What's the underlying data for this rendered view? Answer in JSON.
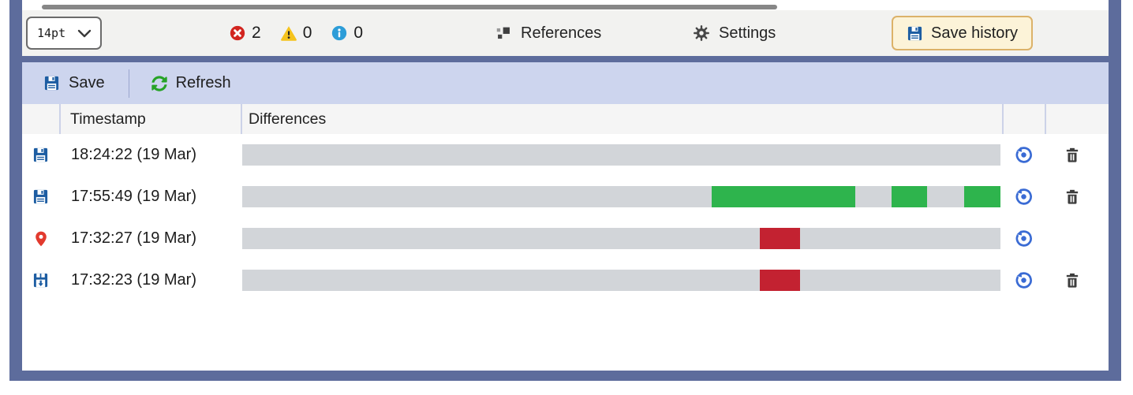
{
  "colors": {
    "frame": "#5d6c9c",
    "toolbar_bg": "#f2f2f0",
    "panel_toolbar_bg": "#cdd5ee",
    "header_bg": "#f5f5f5",
    "header_divider": "#ccd2e8",
    "bar_bg": "#d2d5d9",
    "added": "#2eb44d",
    "removed": "#c32231",
    "icon_blue": "#1d5da2",
    "restore_blue": "#3a6bd4",
    "pin_red": "#e23a2e",
    "refresh_green": "#27a327",
    "error_red": "#d2251f",
    "warning_yellow": "#f5c31d",
    "info_blue": "#2d9dd8",
    "save_history_bg": "#fcf3d8",
    "save_history_border": "#dcb269",
    "scroll_thumb": "#878787"
  },
  "editor_toolbar": {
    "font_size_value": "14pt",
    "error_count": "2",
    "warning_count": "0",
    "info_count": "0",
    "references_label": "References",
    "settings_label": "Settings",
    "save_history_label": "Save history"
  },
  "history_panel": {
    "save_label": "Save",
    "refresh_label": "Refresh",
    "header": {
      "timestamp": "Timestamp",
      "differences": "Differences"
    },
    "rows": [
      {
        "icon": "save-icon",
        "timestamp": "18:24:22 (19 Mar)",
        "segments": [],
        "deletable": true
      },
      {
        "icon": "save-icon",
        "timestamp": "17:55:49 (19 Mar)",
        "segments": [
          {
            "type": "added",
            "left_pct": 61.9,
            "width_pct": 19.0
          },
          {
            "type": "added",
            "left_pct": 85.6,
            "width_pct": 4.7
          },
          {
            "type": "added",
            "left_pct": 95.2,
            "width_pct": 4.8
          }
        ],
        "deletable": true
      },
      {
        "icon": "pin-icon",
        "timestamp": "17:32:27 (19 Mar)",
        "segments": [
          {
            "type": "removed",
            "left_pct": 68.3,
            "width_pct": 5.3
          }
        ],
        "deletable": false
      },
      {
        "icon": "save-download-icon",
        "timestamp": "17:32:23 (19 Mar)",
        "segments": [
          {
            "type": "removed",
            "left_pct": 68.3,
            "width_pct": 5.3
          }
        ],
        "deletable": true
      }
    ]
  }
}
